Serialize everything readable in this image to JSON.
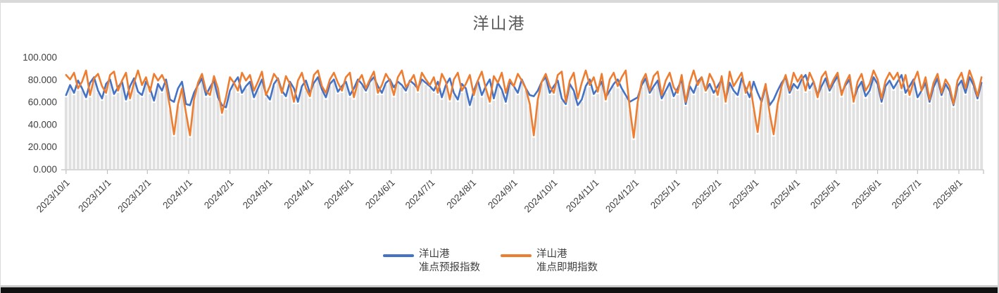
{
  "chart": {
    "legend": [
      {
        "line1": "洋山港",
        "line2": "准点预报指数"
      },
      {
        "line1": "洋山港",
        "line2": "准点即期指数"
      }
    ]
  },
  "chart_data": {
    "type": "line",
    "title": "洋山港",
    "title_color": "#595959",
    "xlabel": "",
    "ylabel": "",
    "ylim": [
      0,
      100
    ],
    "grid": "none",
    "legend_position": "bottom",
    "axis_color": "#bfbfbf",
    "tick_label_color": "#404040",
    "y_tick_values": [
      0,
      20,
      40,
      60,
      80,
      100
    ],
    "y_tick_labels": [
      "0.000",
      "20.000",
      "40.000",
      "60.000",
      "80.000",
      "100.000"
    ],
    "x_tick_labels": [
      "2023/10/1",
      "2023/11/1",
      "2023/12/1",
      "2024/1/1",
      "2024/2/1",
      "2024/3/1",
      "2024/4/1",
      "2024/5/1",
      "2024/6/1",
      "2024/7/1",
      "2024/8/1",
      "2024/9/1",
      "2024/10/1",
      "2024/11/1",
      "2024/12/1",
      "2025/1/1",
      "2025/2/1",
      "2025/3/1",
      "2025/4/1",
      "2025/5/1",
      "2025/6/1",
      "2025/7/1",
      "2025/8/1"
    ],
    "x_tick_days": [
      0,
      31,
      61,
      92,
      123,
      152,
      183,
      213,
      244,
      274,
      305,
      336,
      366,
      397,
      427,
      458,
      489,
      517,
      548,
      578,
      609,
      639,
      670
    ],
    "bars": {
      "color": "#e0e0e0",
      "note": "light-gray background columns, one per data point, reaching up to just below the line values"
    },
    "series": [
      {
        "name": "洋山港准点预报指数",
        "color": "#4472C4",
        "values": [
          66,
          75,
          68,
          79,
          72,
          64,
          77,
          82,
          70,
          63,
          76,
          80,
          67,
          73,
          78,
          62,
          74,
          81,
          69,
          66,
          78,
          72,
          61,
          76,
          70,
          80,
          62,
          60,
          72,
          78,
          58,
          57,
          68,
          75,
          81,
          66,
          73,
          79,
          64,
          57,
          55,
          70,
          77,
          82,
          68,
          74,
          78,
          64,
          72,
          80,
          67,
          62,
          76,
          81,
          70,
          65,
          78,
          72,
          60,
          74,
          79,
          68,
          77,
          82,
          71,
          64,
          76,
          80,
          69,
          74,
          78,
          66,
          72,
          80,
          76,
          70,
          78,
          82,
          74,
          68,
          77,
          80,
          73,
          78,
          75,
          70,
          79,
          76,
          72,
          80,
          77,
          74,
          70,
          78,
          64,
          75,
          81,
          68,
          62,
          76,
          72,
          57,
          70,
          79,
          66,
          74,
          80,
          63,
          77,
          71,
          60,
          78,
          74,
          68,
          80,
          72,
          66,
          65,
          70,
          78,
          82,
          68,
          74,
          79,
          63,
          58,
          76,
          70,
          57,
          62,
          74,
          80,
          67,
          72,
          78,
          64,
          70,
          76,
          80,
          72,
          66,
          60,
          62,
          64,
          75,
          81,
          68,
          74,
          79,
          63,
          70,
          77,
          65,
          72,
          80,
          58,
          74,
          68,
          78,
          82,
          70,
          76,
          68,
          74,
          80,
          62,
          77,
          70,
          66,
          81,
          72,
          64,
          78,
          68,
          60,
          74,
          57,
          62,
          70,
          77,
          82,
          68,
          76,
          72,
          80,
          84,
          72,
          78,
          66,
          74,
          81,
          70,
          77,
          83,
          68,
          75,
          80,
          62,
          72,
          78,
          65,
          70,
          82,
          76,
          60,
          74,
          79,
          72,
          78,
          84,
          68,
          74,
          80,
          64,
          70,
          77,
          60,
          73,
          81,
          66,
          76,
          70,
          57,
          74,
          79,
          68,
          82,
          75,
          63,
          77
        ]
      },
      {
        "name": "洋山港准点即期指数",
        "color": "#ED7D31",
        "values": [
          84,
          80,
          86,
          72,
          78,
          88,
          66,
          81,
          85,
          74,
          68,
          84,
          87,
          70,
          79,
          86,
          63,
          77,
          88,
          75,
          82,
          69,
          85,
          79,
          84,
          76,
          55,
          31,
          58,
          72,
          50,
          30,
          62,
          77,
          85,
          70,
          66,
          83,
          72,
          50,
          64,
          82,
          77,
          70,
          86,
          79,
          84,
          70,
          78,
          87,
          66,
          74,
          85,
          80,
          68,
          83,
          76,
          60,
          79,
          86,
          72,
          65,
          84,
          88,
          74,
          68,
          80,
          86,
          77,
          70,
          82,
          86,
          64,
          78,
          84,
          72,
          80,
          87,
          68,
          75,
          85,
          79,
          66,
          82,
          88,
          73,
          78,
          84,
          70,
          86,
          80,
          75,
          82,
          68,
          85,
          78,
          62,
          80,
          86,
          70,
          76,
          84,
          66,
          79,
          87,
          72,
          60,
          83,
          77,
          86,
          68,
          80,
          74,
          85,
          79,
          72,
          58,
          30,
          62,
          78,
          85,
          74,
          68,
          84,
          87,
          60,
          79,
          86,
          63,
          77,
          88,
          75,
          82,
          69,
          85,
          62,
          80,
          86,
          74,
          82,
          88,
          55,
          28,
          60,
          78,
          85,
          70,
          83,
          87,
          66,
          79,
          86,
          73,
          68,
          84,
          60,
          77,
          88,
          75,
          82,
          70,
          85,
          78,
          66,
          83,
          60,
          87,
          74,
          80,
          86,
          68,
          78,
          55,
          33,
          62,
          76,
          50,
          31,
          58,
          74,
          84,
          70,
          86,
          78,
          84,
          70,
          86,
          78,
          64,
          82,
          87,
          72,
          80,
          86,
          66,
          77,
          84,
          60,
          78,
          85,
          70,
          76,
          88,
          80,
          63,
          79,
          86,
          80,
          86,
          72,
          84,
          66,
          78,
          87,
          70,
          82,
          62,
          77,
          85,
          68,
          80,
          74,
          58,
          79,
          86,
          72,
          88,
          78,
          65,
          82
        ]
      }
    ]
  }
}
